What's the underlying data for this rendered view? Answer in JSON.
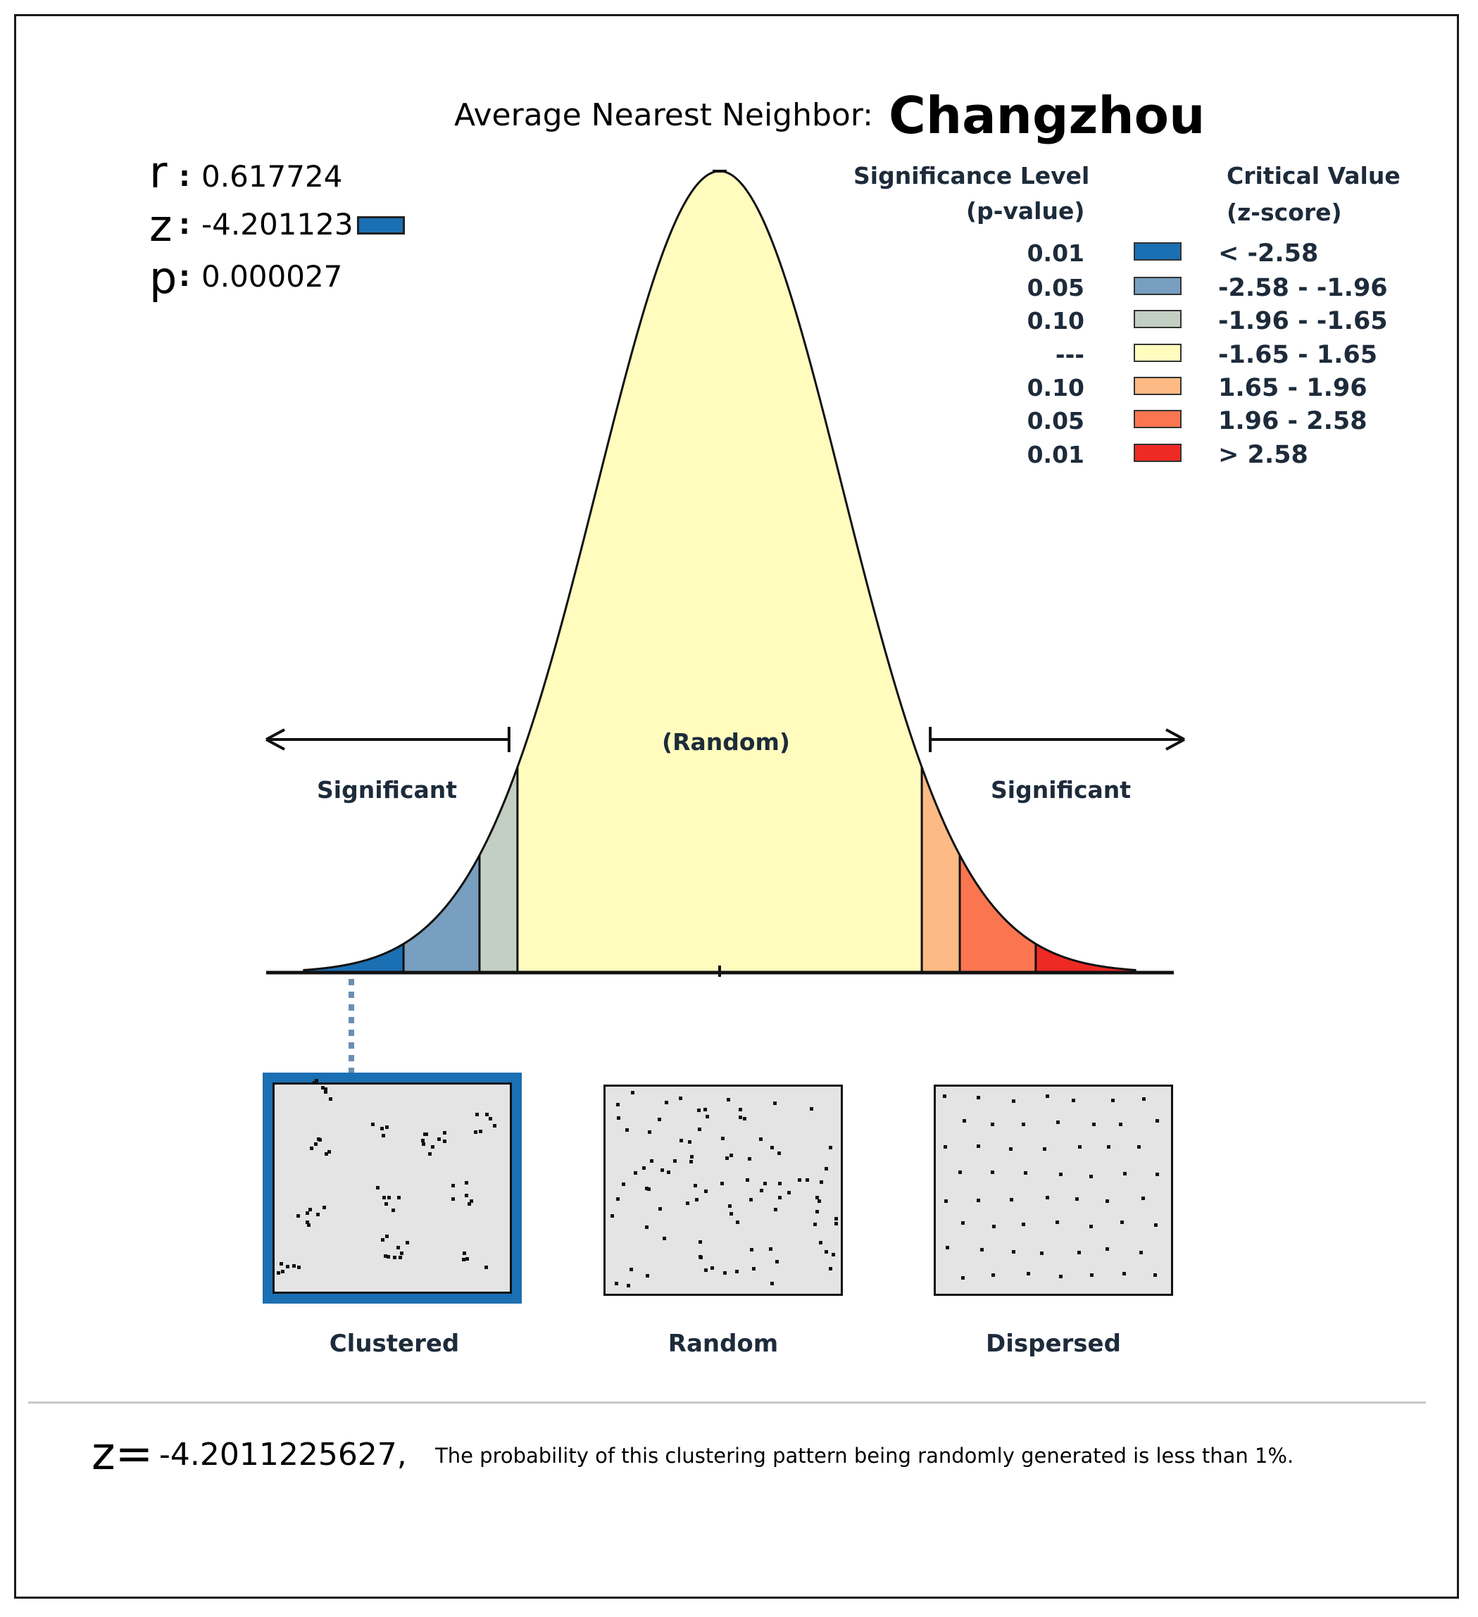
{
  "title": {
    "prefix": "Average Nearest Neighbor:",
    "city": "Changzhou"
  },
  "stats": {
    "r_label": "r",
    "r_value": "0.617724",
    "z_label": "z",
    "z_value": "-4.201123",
    "p_label": "p",
    "p_value": "0.000027",
    "colon": ":",
    "z_swatch_color": "#1b6fb3"
  },
  "legend": {
    "sig_header": "Significance Level",
    "sig_sub": "(p-value)",
    "crit_header": "Critical Value",
    "crit_sub": "(z-score)",
    "rows": [
      {
        "p": "0.01",
        "z": "< -2.58",
        "color": "#1b6fb3"
      },
      {
        "p": "0.05",
        "z": "-2.58 - -1.96",
        "color": "#789fbf"
      },
      {
        "p": "0.10",
        "z": "-1.96 - -1.65",
        "color": "#c3cfc3"
      },
      {
        "p": "---",
        "z": "-1.65 - 1.65",
        "color": "#fffcbe"
      },
      {
        "p": "0.10",
        "z": "1.65 - 1.96",
        "color": "#fdba84"
      },
      {
        "p": "0.05",
        "z": "1.96 - 2.58",
        "color": "#fb7650"
      },
      {
        "p": "0.01",
        "z": "> 2.58",
        "color": "#ee2a25"
      }
    ]
  },
  "chart_data": {
    "type": "area",
    "title": "Average Nearest Neighbor: Changzhou",
    "distribution": "standard normal",
    "x_range": [
      -3.4,
      3.4
    ],
    "breakpoints": [
      -2.58,
      -1.96,
      -1.65,
      1.65,
      1.96,
      2.58
    ],
    "region_colors": [
      "#1b6fb3",
      "#789fbf",
      "#c3cfc3",
      "#fffcbe",
      "#fdba84",
      "#fb7650",
      "#ee2a25"
    ],
    "observed_z": -4.201123,
    "labels": {
      "left": "Significant",
      "center": "(Random)",
      "right": "Significant"
    }
  },
  "panels": [
    {
      "label": "Clustered",
      "selected": true
    },
    {
      "label": "Random",
      "selected": false
    },
    {
      "label": "Dispersed",
      "selected": false
    }
  ],
  "footer": {
    "z_label": "z=",
    "z_value": "-4.2011225627,",
    "message": "The probability of this clustering pattern being randomly generated is less than 1%."
  }
}
